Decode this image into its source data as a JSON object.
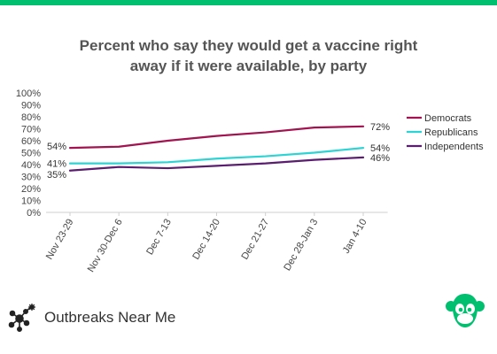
{
  "colors": {
    "top_bar": "#00bf6f",
    "democrats": "#a1144f",
    "republicans": "#2ed3d3",
    "independents": "#5a1e6e",
    "axis_text": "#444444",
    "logo_green": "#00bf6f",
    "brand_dark": "#222222"
  },
  "chart_data": {
    "type": "line",
    "title_lines": [
      "Percent who say they would get a vaccine right",
      "away if it were available, by party"
    ],
    "categories": [
      "Nov 23-29",
      "Nov 30-Dec 6",
      "Dec 7-13",
      "Dec 14-20",
      "Dec 21-27",
      "Dec 28-Jan 3",
      "Jan 4-10"
    ],
    "ylim": [
      0,
      100
    ],
    "yticks": [
      "0%",
      "10%",
      "20%",
      "30%",
      "40%",
      "50%",
      "60%",
      "70%",
      "80%",
      "90%",
      "100%"
    ],
    "grid": false,
    "legend_position": "right",
    "series": [
      {
        "name": "Democrats",
        "key": "democrats",
        "values": [
          54,
          55,
          60,
          64,
          67,
          71,
          72
        ],
        "start_label": "54%",
        "end_label": "72%"
      },
      {
        "name": "Republicans",
        "key": "republicans",
        "values": [
          41,
          41,
          42,
          45,
          47,
          50,
          54
        ],
        "start_label": "41%",
        "end_label": "54%"
      },
      {
        "name": "Independents",
        "key": "independents",
        "values": [
          35,
          38,
          37,
          39,
          41,
          44,
          46
        ],
        "start_label": "35%",
        "end_label": "46%"
      }
    ]
  },
  "footer": {
    "brand_name": "Outbreaks Near Me",
    "brand_icon": "virus-network-icon",
    "partner_icon": "surveymonkey-logo-icon"
  }
}
